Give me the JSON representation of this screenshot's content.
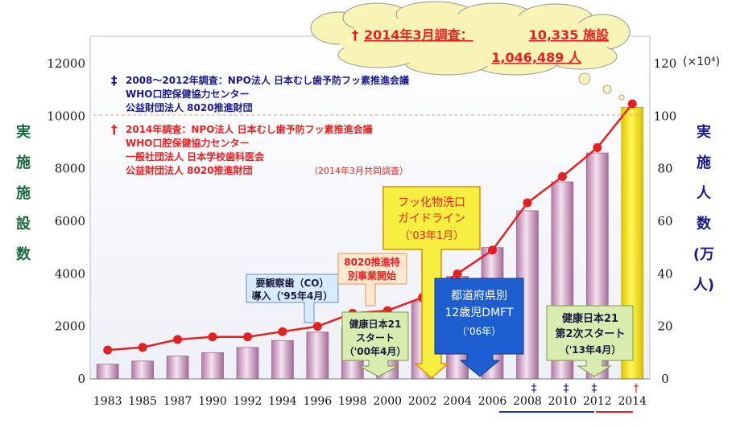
{
  "chart_data": {
    "type": "bar",
    "categories": [
      "1983",
      "1985",
      "1987",
      "1990",
      "1992",
      "1994",
      "1996",
      "1998",
      "2000",
      "2002",
      "2004",
      "2006",
      "2008",
      "2010",
      "2012",
      "2014"
    ],
    "series": [
      {
        "name": "",
        "axis": "left",
        "type": "bar",
        "values": [
          560,
          680,
          870,
          1000,
          1200,
          1460,
          1780,
          1950,
          2300,
          2950,
          3900,
          5000,
          6400,
          7500,
          8600,
          10335
        ]
      },
      {
        "name": "",
        "axis": "right",
        "type": "line",
        "values": [
          11,
          12,
          15,
          16,
          16,
          18,
          20,
          25,
          26,
          31,
          40,
          49,
          67,
          77,
          88,
          104.6489
        ]
      }
    ],
    "ylim_left": [
      0,
      12000
    ],
    "yticks_left": [
      "0",
      "2000",
      "4000",
      "6000",
      "8000",
      "10000",
      "12000"
    ],
    "ylim_right": [
      0,
      120
    ],
    "yticks_right": [
      "0",
      "20",
      "40",
      "60",
      "80",
      "100",
      "120"
    ],
    "right_unit": "(×10⁴)",
    "ylabel_left": [
      "実",
      "施",
      "施",
      "設",
      "数"
    ],
    "ylabel_right": [
      "実",
      "施",
      "人",
      "数",
      "(万",
      "人)"
    ],
    "colors": {
      "bar": "#c890b8",
      "bar_2014": "#f5e619",
      "line": "#e62020",
      "dagger_blue": "#1a1a8c",
      "red": "#e62020",
      "underline_blue": "#2233aa"
    },
    "grid": false,
    "legend": "none"
  },
  "cloud": {
    "line1_prefix": "†",
    "line1_a": "2014年3月調査：",
    "line1_b": "10,335 施設",
    "line2": "1,046,489 人"
  },
  "notes": {
    "blue_dagger": "‡",
    "blue": [
      "2008～2012年調査：NPO法人 日本むし歯予防フッ素推進会議",
      "WHO口腔保健協力センター",
      "公益財団法人 8020推進財団"
    ],
    "red_dagger": "†",
    "red": [
      "2014年調査：NPO法人 日本むし歯予防フッ素推進会議",
      "WHO口腔保健協力センター",
      "一般社団法人 日本学校歯科医会",
      "公益財団法人 8020推進財団"
    ],
    "red_suffix": "（2014年3月共同調査）"
  },
  "callouts": {
    "youkansatsu": [
      "要観察歯（CO）",
      "導入（'95年4月）"
    ],
    "suishin": [
      "8020推進特",
      "別事業開始"
    ],
    "kenkou21": [
      "健康日本21",
      "スタート",
      "（'00年4月）"
    ],
    "fukka": [
      "フッ化物洗口",
      "ガイドライン",
      "（'03年1月）"
    ],
    "todoufuken": [
      "都道府県別",
      "12歳児DMFT",
      "（'06年）"
    ],
    "kenkou21_2": [
      "健康日本21",
      "第2次スタート",
      "（'13年4月）"
    ]
  },
  "markers": {
    "double_dagger": "‡",
    "dagger": "†"
  }
}
